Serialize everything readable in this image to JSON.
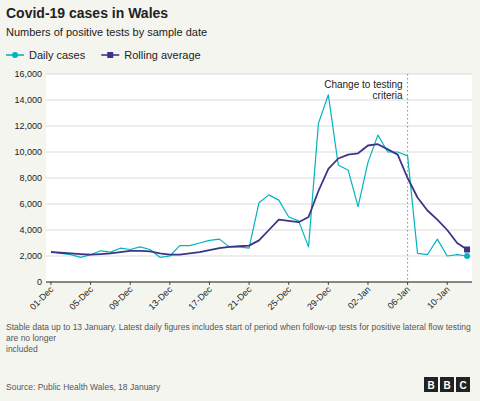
{
  "chart_data": {
    "type": "line",
    "title": "Covid-19 cases in Wales",
    "subtitle": "Numbers of positive tests by sample date",
    "footnote": "Stable data up to 13 January. Latest daily figures includes start of period when follow-up tests for positive lateral flow testing are no longer\nincluded",
    "source": "Source: Public Health Wales, 18 January",
    "logo": "BBC",
    "categories": [
      "01-Dec",
      null,
      null,
      null,
      "05-Dec",
      null,
      null,
      null,
      "09-Dec",
      null,
      null,
      null,
      "13-Dec",
      null,
      null,
      null,
      "17-Dec",
      null,
      null,
      null,
      "21-Dec",
      null,
      null,
      null,
      "25-Dec",
      null,
      null,
      null,
      "29-Dec",
      null,
      null,
      null,
      "02-Jan",
      null,
      null,
      null,
      "06-Jan",
      null,
      null,
      null,
      "10-Jan",
      null,
      null
    ],
    "series": [
      {
        "name": "Daily cases",
        "color": "#00b5bd",
        "marker": "circle",
        "values": [
          2350,
          2200,
          2100,
          1900,
          2100,
          2400,
          2300,
          2600,
          2500,
          2700,
          2500,
          1900,
          2000,
          2800,
          2800,
          3000,
          3200,
          3300,
          2700,
          2700,
          2600,
          6100,
          6700,
          6300,
          5000,
          4700,
          2700,
          12200,
          14400,
          9000,
          8600,
          5800,
          9200,
          11300,
          10000,
          10000,
          9700,
          2200,
          2100,
          3300,
          2000,
          2100,
          2000
        ]
      },
      {
        "name": "Rolling average",
        "color": "#3b3589",
        "marker": "square",
        "values": [
          2300,
          2250,
          2200,
          2150,
          2100,
          2150,
          2200,
          2300,
          2400,
          2400,
          2350,
          2200,
          2100,
          2100,
          2200,
          2300,
          2450,
          2600,
          2700,
          2750,
          2800,
          3200,
          4000,
          4800,
          4700,
          4600,
          5000,
          7000,
          8700,
          9500,
          9800,
          9900,
          10500,
          10600,
          10200,
          9800,
          8000,
          6500,
          5500,
          4800,
          4000,
          3000,
          2500
        ]
      }
    ],
    "annotations": [
      {
        "x": "06-Jan",
        "text": [
          "Change to testing",
          "criteria"
        ]
      }
    ],
    "ylim": [
      0,
      16000
    ],
    "yticks": [
      0,
      {
        "value": 2000,
        "label": "2,000"
      },
      {
        "value": 4000,
        "label": "4,000"
      },
      {
        "value": 6000,
        "label": "6,000"
      },
      {
        "value": 8000,
        "label": "8,000"
      },
      {
        "value": 10000,
        "label": "10,000"
      },
      {
        "value": 12000,
        "label": "12,000"
      },
      {
        "value": 14000,
        "label": "14,000"
      },
      {
        "value": 16000,
        "label": "16,000"
      }
    ],
    "grid": true,
    "legend": "top-left"
  }
}
